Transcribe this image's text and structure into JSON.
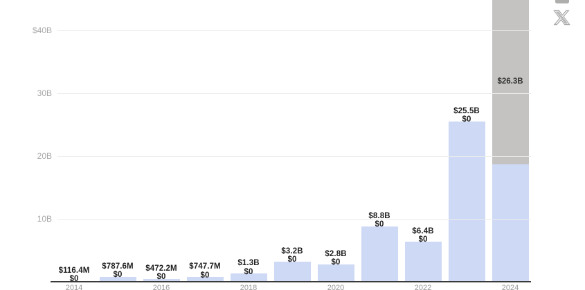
{
  "chart_data": {
    "type": "bar",
    "stacked": true,
    "unit": "USD",
    "y_axis": {
      "ticks": [
        {
          "label": "$40B",
          "value": 40
        },
        {
          "label": "30B",
          "value": 30
        },
        {
          "label": "20B",
          "value": 20
        },
        {
          "label": "10B",
          "value": 10
        }
      ],
      "visible_max_billions": 45
    },
    "series": [
      {
        "name": "primary",
        "color": "#cdd9f5"
      },
      {
        "name": "secondary",
        "color": "#c4c3c1"
      }
    ],
    "bars": [
      {
        "tick": "2014",
        "primary_billions": 0.1164,
        "secondary_billions": 0,
        "primary_label": "$116.4M",
        "secondary_label": "$0",
        "secondary_inside_label": ""
      },
      {
        "tick": "",
        "primary_billions": 0.7876,
        "secondary_billions": 0,
        "primary_label": "$787.6M",
        "secondary_label": "$0",
        "secondary_inside_label": ""
      },
      {
        "tick": "2016",
        "primary_billions": 0.4722,
        "secondary_billions": 0,
        "primary_label": "$472.2M",
        "secondary_label": "$0",
        "secondary_inside_label": ""
      },
      {
        "tick": "",
        "primary_billions": 0.7477,
        "secondary_billions": 0,
        "primary_label": "$747.7M",
        "secondary_label": "$0",
        "secondary_inside_label": ""
      },
      {
        "tick": "2018",
        "primary_billions": 1.3,
        "secondary_billions": 0,
        "primary_label": "$1.3B",
        "secondary_label": "$0",
        "secondary_inside_label": ""
      },
      {
        "tick": "",
        "primary_billions": 3.2,
        "secondary_billions": 0,
        "primary_label": "$3.2B",
        "secondary_label": "$0",
        "secondary_inside_label": ""
      },
      {
        "tick": "2020",
        "primary_billions": 2.8,
        "secondary_billions": 0,
        "primary_label": "$2.8B",
        "secondary_label": "$0",
        "secondary_inside_label": ""
      },
      {
        "tick": "",
        "primary_billions": 8.8,
        "secondary_billions": 0,
        "primary_label": "$8.8B",
        "secondary_label": "$0",
        "secondary_inside_label": ""
      },
      {
        "tick": "2022",
        "primary_billions": 6.4,
        "secondary_billions": 0,
        "primary_label": "$6.4B",
        "secondary_label": "$0",
        "secondary_inside_label": ""
      },
      {
        "tick": "",
        "primary_billions": 25.5,
        "secondary_billions": 0,
        "primary_label": "$25.5B",
        "secondary_label": "$0",
        "secondary_inside_label": ""
      },
      {
        "tick": "2024",
        "primary_billions": 18.7,
        "secondary_billions": 26.3,
        "primary_label": "",
        "secondary_label": "",
        "secondary_inside_label": "$26.3B"
      }
    ]
  },
  "colors": {
    "gridline": "#ececec",
    "axis_line": "#3a3a3a",
    "y_tick_text": "#a8a8a8",
    "x_tick_text": "#9a9a9a",
    "data_label_text": "#1f1f1f",
    "icon_gray": "#ababab"
  },
  "icons": {
    "x_share": "x-share-icon",
    "partial_top": "image-download-icon"
  }
}
